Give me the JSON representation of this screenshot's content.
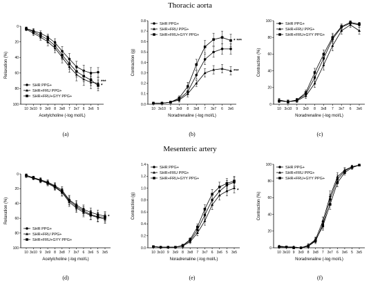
{
  "section_titles": [
    "Thoracic aorta",
    "Mesenteric artery"
  ],
  "chart_data": [
    {
      "id": "a",
      "panel_label": "(a)",
      "type": "line",
      "y_inverted": true,
      "xlabel": "Acetylcholine (-log mol/L)",
      "ylabel": "Relaxation (%)",
      "x": [
        "10",
        "3x10",
        "9",
        "3x9",
        "8",
        "3x8",
        "7",
        "3x7",
        "6",
        "3x6",
        "5"
      ],
      "ylim": [
        0,
        100
      ],
      "yticks": [
        "0",
        "20",
        "40",
        "60",
        "80",
        "100"
      ],
      "legend_position": "bottom-left",
      "series": [
        {
          "name": "SHR PPG+",
          "marker": "circle",
          "values": [
            3,
            6,
            9,
            14,
            21,
            32,
            42,
            52,
            57,
            60,
            59
          ],
          "err": [
            2,
            3,
            3,
            4,
            5,
            6,
            7,
            7,
            7,
            7,
            6
          ]
        },
        {
          "name": "SHR+FRU PPG+",
          "marker": "triangle",
          "values": [
            4,
            9,
            14,
            20,
            28,
            40,
            52,
            62,
            68,
            72,
            73
          ],
          "err": [
            2,
            3,
            4,
            5,
            6,
            7,
            7,
            8,
            8,
            8,
            7
          ]
        },
        {
          "name": "SHR+FRU+GYY PPG+",
          "marker": "square",
          "values": [
            3,
            7,
            12,
            17,
            25,
            37,
            48,
            58,
            64,
            69,
            76
          ],
          "err": [
            2,
            3,
            4,
            5,
            6,
            6,
            7,
            7,
            7,
            7,
            7
          ]
        }
      ],
      "annotations": [
        {
          "text": "***",
          "series": 2,
          "index": 10,
          "dy": -6
        },
        {
          "text": "*",
          "series": 1,
          "index": 10,
          "dy": 3
        }
      ]
    },
    {
      "id": "b",
      "panel_label": "(b)",
      "type": "line",
      "y_inverted": false,
      "xlabel": "Noradrenaline (-log mol/L)",
      "ylabel": "Contraction (g)",
      "x": [
        "10",
        "3x10",
        "9",
        "3x9",
        "8",
        "3x8",
        "7",
        "3x7",
        "6",
        "3x6"
      ],
      "ylim": [
        0,
        0.8
      ],
      "yticks": [
        "0.0",
        "0.1",
        "0.2",
        "0.3",
        "0.4",
        "0.5",
        "0.6",
        "0.7",
        "0.8"
      ],
      "legend_position": "top-left",
      "series": [
        {
          "name": "SHR PPG+",
          "marker": "circle",
          "values": [
            0.01,
            0.01,
            0.02,
            0.05,
            0.12,
            0.28,
            0.43,
            0.5,
            0.53,
            0.53
          ],
          "err": [
            0.01,
            0.01,
            0.01,
            0.02,
            0.03,
            0.04,
            0.05,
            0.05,
            0.05,
            0.05
          ]
        },
        {
          "name": "SHR+FRU PPG+",
          "marker": "triangle",
          "values": [
            0.01,
            0.01,
            0.02,
            0.04,
            0.1,
            0.2,
            0.3,
            0.33,
            0.34,
            0.32
          ],
          "err": [
            0.01,
            0.01,
            0.01,
            0.02,
            0.03,
            0.03,
            0.04,
            0.04,
            0.04,
            0.04
          ]
        },
        {
          "name": "SHR+FRU+GYY PPG+",
          "marker": "square",
          "values": [
            0.01,
            0.01,
            0.02,
            0.06,
            0.17,
            0.38,
            0.55,
            0.62,
            0.64,
            0.61
          ],
          "err": [
            0.01,
            0.01,
            0.01,
            0.02,
            0.04,
            0.05,
            0.06,
            0.06,
            0.06,
            0.06
          ]
        }
      ],
      "annotations": [
        {
          "text": "* ***",
          "series": 2,
          "index": 9,
          "dy": 0
        },
        {
          "text": "***",
          "series": 1,
          "index": 9,
          "dy": 0
        }
      ]
    },
    {
      "id": "c",
      "panel_label": "(c)",
      "type": "line",
      "y_inverted": false,
      "xlabel": "Noradrenaline (-log mol/L)",
      "ylabel": "Contraction (%)",
      "x": [
        "10",
        "3x10",
        "9",
        "3x9",
        "8",
        "3x8",
        "7",
        "3x7",
        "6",
        "3x6"
      ],
      "ylim": [
        0,
        100
      ],
      "yticks": [
        "0",
        "20",
        "40",
        "60",
        "80",
        "100"
      ],
      "legend_position": "top-left",
      "series": [
        {
          "name": "SHR PPG+",
          "marker": "circle",
          "values": [
            4,
            3,
            5,
            12,
            32,
            55,
            78,
            92,
            97,
            95
          ],
          "err": [
            2,
            2,
            2,
            3,
            5,
            6,
            5,
            3,
            2,
            3
          ]
        },
        {
          "name": "SHR+FRU PPG+",
          "marker": "triangle",
          "values": [
            5,
            3,
            4,
            10,
            25,
            47,
            70,
            88,
            95,
            88
          ],
          "err": [
            2,
            2,
            2,
            3,
            5,
            6,
            6,
            4,
            3,
            4
          ]
        },
        {
          "name": "SHR+FRU+GYY PPG+",
          "marker": "square",
          "values": [
            4,
            3,
            5,
            14,
            38,
            60,
            80,
            93,
            98,
            96
          ],
          "err": [
            2,
            2,
            2,
            3,
            5,
            5,
            5,
            3,
            2,
            2
          ]
        }
      ],
      "annotations": []
    },
    {
      "id": "d",
      "panel_label": "(d)",
      "type": "line",
      "y_inverted": true,
      "xlabel": "Acetylcholine (-log mol/L)",
      "ylabel": "Relaxation (%)",
      "x": [
        "10",
        "3x10",
        "9",
        "3x9",
        "8",
        "3x8",
        "7",
        "3x7",
        "6",
        "3x6",
        "5",
        "3x5"
      ],
      "ylim": [
        0,
        100
      ],
      "yticks": [
        "0",
        "20",
        "40",
        "60",
        "80",
        "100"
      ],
      "legend_position": "bottom-left",
      "series": [
        {
          "name": "SHR PPG+",
          "marker": "circle",
          "values": [
            2,
            5,
            8,
            11,
            16,
            22,
            35,
            42,
            48,
            52,
            55,
            57
          ],
          "err": [
            2,
            2,
            3,
            3,
            4,
            5,
            6,
            6,
            6,
            6,
            6,
            6
          ]
        },
        {
          "name": "SHR+FRU PPG+",
          "marker": "triangle",
          "values": [
            3,
            6,
            9,
            13,
            18,
            25,
            38,
            46,
            52,
            56,
            59,
            61
          ],
          "err": [
            2,
            2,
            3,
            3,
            4,
            5,
            6,
            6,
            6,
            6,
            6,
            6
          ]
        },
        {
          "name": "SHR+FRU+GYY PPG+",
          "marker": "square",
          "values": [
            2,
            5,
            9,
            12,
            17,
            24,
            36,
            44,
            50,
            55,
            58,
            59
          ],
          "err": [
            2,
            2,
            3,
            3,
            4,
            5,
            6,
            6,
            6,
            6,
            6,
            6
          ]
        }
      ],
      "annotations": [
        {
          "text": "*",
          "series": 1,
          "index": 11,
          "dy": -4
        }
      ]
    },
    {
      "id": "e",
      "panel_label": "(e)",
      "type": "line",
      "y_inverted": false,
      "xlabel": "Noradrenaline (-log mol/L)",
      "ylabel": "Contraction (g)",
      "x": [
        "10",
        "3x10",
        "9",
        "3x9",
        "8",
        "3x8",
        "7",
        "3x7",
        "6",
        "3x6",
        "5",
        "3x5"
      ],
      "ylim": [
        0,
        1.4
      ],
      "yticks": [
        "0.0",
        "0.2",
        "0.4",
        "0.6",
        "0.8",
        "1.0",
        "1.2",
        "1.4"
      ],
      "legend_position": "top-left",
      "series": [
        {
          "name": "SHR PPG+",
          "marker": "circle",
          "values": [
            0.02,
            0.01,
            0.01,
            0.01,
            0.04,
            0.12,
            0.3,
            0.55,
            0.8,
            0.95,
            1.05,
            1.1
          ],
          "err": [
            0.01,
            0.01,
            0.01,
            0.01,
            0.02,
            0.03,
            0.05,
            0.07,
            0.08,
            0.08,
            0.08,
            0.08
          ]
        },
        {
          "name": "SHR+FRU PPG+",
          "marker": "triangle",
          "values": [
            0.02,
            0.01,
            0.01,
            0.01,
            0.03,
            0.1,
            0.25,
            0.45,
            0.72,
            0.88,
            0.95,
            1.0
          ],
          "err": [
            0.01,
            0.01,
            0.01,
            0.01,
            0.02,
            0.03,
            0.05,
            0.07,
            0.08,
            0.08,
            0.08,
            0.08
          ]
        },
        {
          "name": "SHR+FRU+GYY PPG+",
          "marker": "square",
          "values": [
            0.02,
            0.01,
            0.01,
            0.01,
            0.04,
            0.14,
            0.35,
            0.65,
            0.9,
            1.02,
            1.08,
            1.12
          ],
          "err": [
            0.01,
            0.01,
            0.01,
            0.01,
            0.02,
            0.03,
            0.05,
            0.07,
            0.08,
            0.08,
            0.08,
            0.08
          ]
        }
      ],
      "annotations": [
        {
          "text": "*",
          "series": 1,
          "index": 11,
          "dy": 3
        }
      ]
    },
    {
      "id": "f",
      "panel_label": "(f)",
      "type": "line",
      "y_inverted": false,
      "xlabel": "Noradrenaline (-log mol/L)",
      "ylabel": "Contraction (%)",
      "x": [
        "10",
        "3x10",
        "9",
        "3x9",
        "8",
        "3x8",
        "7",
        "3x7",
        "6",
        "3x6",
        "5",
        "3x5"
      ],
      "ylim": [
        0,
        100
      ],
      "yticks": [
        "0",
        "20",
        "40",
        "60",
        "80",
        "100"
      ],
      "legend_position": "top-left",
      "series": [
        {
          "name": "SHR PPG+",
          "marker": "circle",
          "values": [
            1,
            1,
            0,
            0,
            2,
            8,
            28,
            58,
            82,
            92,
            97,
            99
          ],
          "err": [
            1,
            1,
            1,
            1,
            2,
            3,
            5,
            6,
            5,
            3,
            2,
            1
          ]
        },
        {
          "name": "SHR+FRU PPG+",
          "marker": "triangle",
          "values": [
            2,
            1,
            1,
            0,
            3,
            10,
            32,
            62,
            85,
            93,
            97,
            99
          ],
          "err": [
            1,
            1,
            1,
            1,
            2,
            3,
            5,
            6,
            5,
            3,
            2,
            1
          ]
        },
        {
          "name": "SHR+FRU+GYY PPG+",
          "marker": "square",
          "values": [
            1,
            1,
            0,
            0,
            2,
            9,
            26,
            52,
            78,
            90,
            96,
            99
          ],
          "err": [
            1,
            1,
            1,
            1,
            2,
            3,
            5,
            6,
            5,
            3,
            2,
            1
          ]
        }
      ],
      "annotations": []
    }
  ]
}
